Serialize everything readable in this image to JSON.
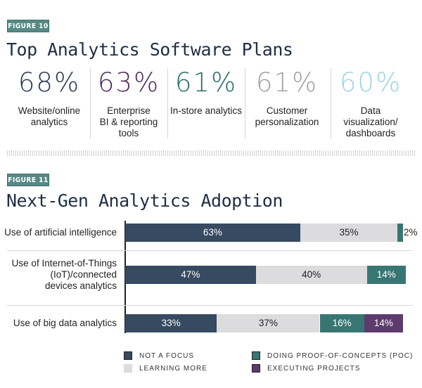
{
  "figure10": {
    "tag": "FIGURE 10",
    "title": "Top Analytics Software Plans",
    "stats": [
      {
        "value": "68%",
        "label": "Website/online\nanalytics",
        "color": "#2b3b52"
      },
      {
        "value": "63%",
        "label": "Enterprise\nBI & reporting\ntools",
        "color": "#4e2c5e"
      },
      {
        "value": "61%",
        "label": "In-store analytics",
        "color": "#2a6b68"
      },
      {
        "value": "61%",
        "label": "Customer\npersonalization",
        "color": "#9fa2a2"
      },
      {
        "value": "60%",
        "label": "Data\nvisualization/\ndashboards",
        "color": "#9dd5e8"
      }
    ]
  },
  "figure11": {
    "tag": "FIGURE 11",
    "title": "Next-Gen Analytics Adoption"
  },
  "chart_data": {
    "type": "bar",
    "orientation": "horizontal",
    "stacked": true,
    "categories": [
      "Use of artificial intelligence",
      "Use of Internet-of-Things\n(IoT)/connected\ndevices analytics",
      "Use of big data analytics"
    ],
    "series": [
      {
        "name": "NOT A FOCUS",
        "color": "#364a61",
        "text_color": "#ffffff",
        "values": [
          63,
          47,
          33
        ]
      },
      {
        "name": "LEARNING MORE",
        "color": "#dcdcde",
        "text_color": "#222222",
        "values": [
          35,
          40,
          37
        ]
      },
      {
        "name": "DOING PROOF-OF-CONCEPTS (POC)",
        "color": "#387673",
        "text_color": "#ffffff",
        "values": [
          2,
          14,
          16
        ]
      },
      {
        "name": "EXECUTING PROJECTS",
        "color": "#5d3b6d",
        "text_color": "#ffffff",
        "values": [
          0,
          0,
          14
        ]
      }
    ],
    "data_labels": [
      [
        "63%",
        "47%",
        "33%"
      ],
      [
        "35%",
        "40%",
        "37%"
      ],
      [
        "2%",
        "14%",
        "16%"
      ],
      [
        "",
        "",
        "14%"
      ]
    ],
    "xlim": [
      0,
      100
    ],
    "grid": false,
    "legend_position": "bottom"
  }
}
